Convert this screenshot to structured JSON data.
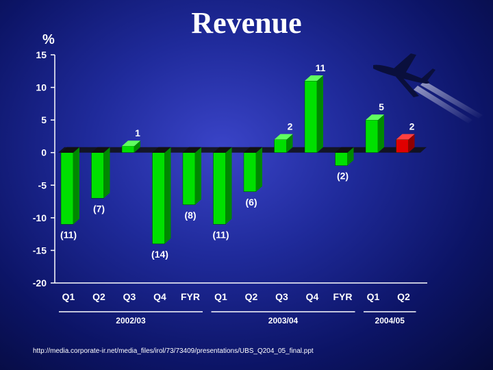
{
  "title": "Revenue",
  "footer_text": "http://media.corporate-ir.net/media_files/irol/73/73409/presentations/UBS_Q204_05_final.ppt",
  "chart_data": {
    "type": "bar",
    "title": "Revenue",
    "ylabel": "%",
    "ylim": [
      -20,
      15
    ],
    "yticks": [
      15,
      10,
      5,
      0,
      -5,
      -10,
      -15,
      -20
    ],
    "categories": [
      "Q1",
      "Q2",
      "Q3",
      "Q4",
      "FYR",
      "Q1",
      "Q2",
      "Q3",
      "Q4",
      "FYR",
      "Q1",
      "Q2"
    ],
    "values": [
      -11,
      -7,
      1,
      -14,
      -8,
      -11,
      -6,
      2,
      11,
      -2,
      5,
      2
    ],
    "data_labels": [
      "(11)",
      "(7)",
      "1",
      "(14)",
      "(8)",
      "(11)",
      "(6)",
      "2",
      "11",
      "(2)",
      "5",
      "2"
    ],
    "groups": [
      {
        "label": "2002/03",
        "start": 0,
        "end": 4
      },
      {
        "label": "2003/04",
        "start": 5,
        "end": 9
      },
      {
        "label": "2004/05",
        "start": 10,
        "end": 11
      }
    ],
    "bar_color": "#00e000",
    "highlight_color": "#e00000",
    "highlight_index": 11,
    "grid": false
  }
}
